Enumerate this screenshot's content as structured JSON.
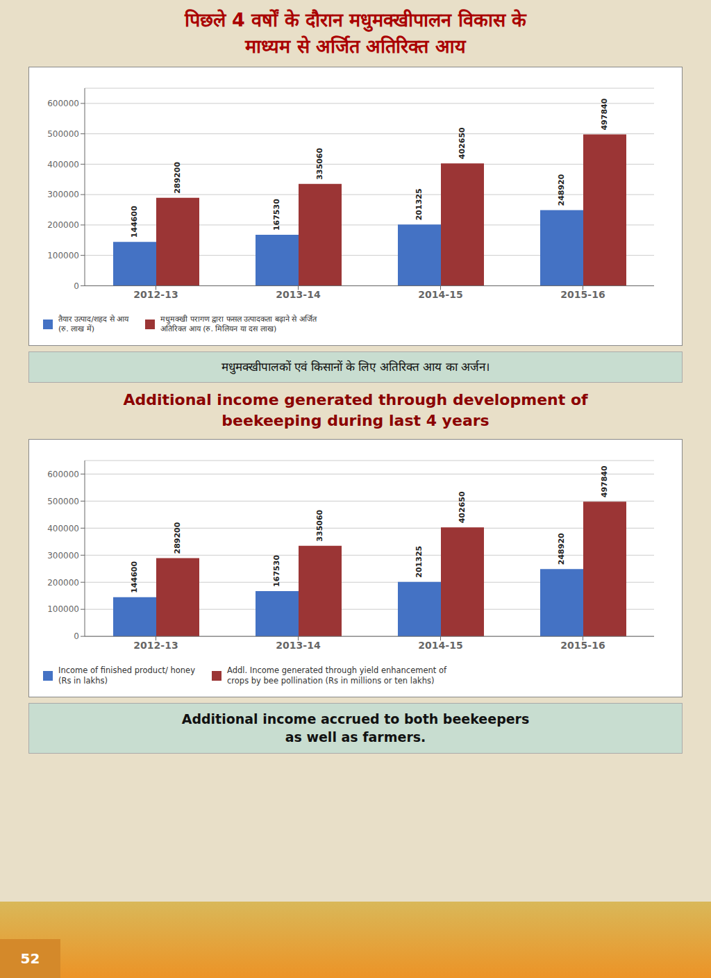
{
  "chart_data": [
    {
      "type": "bar",
      "title": "पिछले 4 वर्षों के दौरान मधुमक्खीपालन विकास के\nमाध्यम से अर्जित अतिरिक्त आय",
      "categories": [
        "2012-13",
        "2013-14",
        "2014-15",
        "2015-16"
      ],
      "series": [
        {
          "name": "तैयार उत्पाद/शहद से आय\n(रु. लाख में)",
          "color": "#4472C4",
          "values": [
            144600,
            167530,
            201325,
            248920
          ]
        },
        {
          "name": "मधुमक्खी परागण द्वारा फसल उत्पादकता बढ़ाने से अर्जित\nअतिरिक्त आय (रु. मिलियन या दस लाख)",
          "color": "#9B3535",
          "values": [
            289200,
            335060,
            402650,
            497840
          ]
        }
      ],
      "ylim": [
        0,
        650000
      ],
      "yticks": [
        0,
        100000,
        200000,
        300000,
        400000,
        500000,
        600000
      ],
      "grid": true,
      "data_labels": true,
      "legend": "bottom",
      "annotations": [
        "मधुमक्खीपालकों एवं किसानों के लिए अतिरिक्त आय का अर्जन।"
      ]
    },
    {
      "type": "bar",
      "title": "Additional income generated through development of\nbeekeeping during last 4 years",
      "categories": [
        "2012-13",
        "2013-14",
        "2014-15",
        "2015-16"
      ],
      "series": [
        {
          "name": "Income of finished product/ honey\n(Rs in lakhs)",
          "color": "#4472C4",
          "values": [
            144600,
            167530,
            201325,
            248920
          ]
        },
        {
          "name": "Addl. Income generated through yield enhancement of\ncrops by bee pollination (Rs in millions or ten lakhs)",
          "color": "#9B3535",
          "values": [
            289200,
            335060,
            402650,
            497840
          ]
        }
      ],
      "ylim": [
        0,
        650000
      ],
      "yticks": [
        0,
        100000,
        200000,
        300000,
        400000,
        500000,
        600000
      ],
      "grid": true,
      "data_labels": true,
      "legend": "bottom",
      "annotations": [
        "Additional income accrued to both beekeepers\nas well as farmers.",
        "52"
      ]
    }
  ]
}
